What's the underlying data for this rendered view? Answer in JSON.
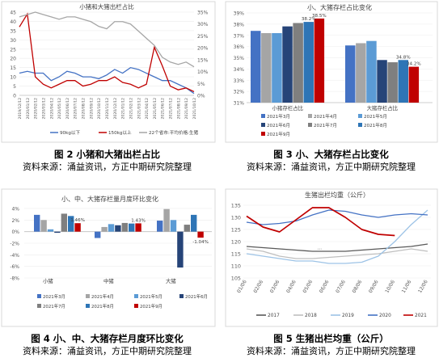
{
  "charts": {
    "c1": {
      "title": "小猪和大猪出栏占比",
      "left_ticks": [
        "0",
        "5",
        "10",
        "15",
        "20",
        "25",
        "30",
        "35",
        "40",
        "45"
      ],
      "right_ticks": [
        "0%",
        "5%",
        "10%",
        "15%",
        "20%",
        "25%",
        "30%",
        "35%"
      ],
      "x_labels": [
        "2019/12/12",
        "2020/01/12",
        "2020/02/12",
        "2020/03/12",
        "2020/04/12",
        "2020/05/12",
        "2020/06/12",
        "2020/07/12",
        "2020/08/12",
        "2020/09/12",
        "2020/10/12",
        "2020/11/12",
        "2020/12/12",
        "2021/01/12",
        "2021/02/12",
        "2021/03/12",
        "2021/04/12",
        "2021/05/12",
        "2021/06/12",
        "2021/07/12",
        "2021/08/12",
        "2021/09/12",
        "2021/10/12"
      ],
      "legend": [
        "90kg以下",
        "150kg以上",
        "22个省市:平均价格:生猪"
      ]
    },
    "c2": {
      "title": "小、大猪存栏占比变化",
      "y_ticks": [
        "31%",
        "32%",
        "33%",
        "34%",
        "35%",
        "36%",
        "37%",
        "38%",
        "39%"
      ],
      "groups": [
        "小猪存栏占比",
        "大猪存栏占比"
      ],
      "labels_g1": [
        "38.2%",
        "38.5%"
      ],
      "labels_g2": [
        "34.8%",
        "34.2%"
      ],
      "legend": [
        "2021年3月",
        "2021年4月",
        "2021年5月",
        "2021年6月",
        "2021年7月",
        "2021年8月",
        "2021年9月"
      ]
    },
    "c4": {
      "title": "小、中、大猪存栏量月度环比变化",
      "y_ticks": [
        "4%",
        "2%",
        "0%",
        "-2%",
        "-4%",
        "-6%",
        "-8%"
      ],
      "groups": [
        "小猪",
        "中猪",
        "大猪"
      ],
      "labels": [
        "1.46%",
        "1.43%",
        "-1.04%"
      ],
      "legend": [
        "2021年3月",
        "2021年4月",
        "2021年5月",
        "2021年6月",
        "2021年7月",
        "2021年8月",
        "2021年9月"
      ]
    },
    "c5": {
      "title": "生猪出栏均重（公斤）",
      "y_ticks": [
        "135",
        "130",
        "125",
        "120",
        "115",
        "110",
        "105"
      ],
      "x_labels": [
        "01/06",
        "02/06",
        "03/06",
        "04/06",
        "05/06",
        "06/06",
        "07/06",
        "08/06",
        "09/06",
        "10/06",
        "11/06",
        "12/06"
      ],
      "legend": [
        "2017",
        "2018",
        "2019",
        "2020",
        "2021"
      ],
      "note": "..."
    }
  },
  "captions": {
    "fig2_title": "图 2 小猪和大猪出栏占比",
    "fig2_source": "资料来源：涌益资讯，方正中期研究院整理",
    "fig3_title": "图 3 小、大猪存栏占比变化",
    "fig3_source": "资料来源：涌益资讯，方正中期研究院整理",
    "fig4_title": "图 4 小、中、大猪存栏月度环比变化",
    "fig4_source": "资料来源：涌益资讯，方正中期研究院整理",
    "fig5_title": "图 5 生猪出栏均重（公斤）",
    "fig5_source": "资料来源：涌益资讯，方正中期研究院整理"
  },
  "chart_data": [
    {
      "type": "line",
      "title": "小猪和大猪出栏占比",
      "x": [
        "2019/12/12",
        "2020/01/12",
        "2020/02/12",
        "2020/03/12",
        "2020/04/12",
        "2020/05/12",
        "2020/06/12",
        "2020/07/12",
        "2020/08/12",
        "2020/09/12",
        "2020/10/12",
        "2020/11/12",
        "2020/12/12",
        "2021/01/12",
        "2021/02/12",
        "2021/03/12",
        "2021/04/12",
        "2021/05/12",
        "2021/06/12",
        "2021/07/12",
        "2021/08/12",
        "2021/09/12",
        "2021/10/12"
      ],
      "ylim": [
        0,
        45
      ],
      "y2lim": [
        0,
        35
      ],
      "series": [
        {
          "name": "90kg以下",
          "axis": "left",
          "color": "#4472c4",
          "values": [
            12,
            13,
            12,
            12,
            8,
            10,
            13,
            12,
            10,
            10,
            9,
            11,
            14,
            12,
            15,
            14,
            12,
            10,
            8,
            8,
            6,
            4,
            1
          ]
        },
        {
          "name": "150kg以上",
          "axis": "left",
          "color": "#c00000",
          "values": [
            37,
            44,
            10,
            6,
            4,
            6,
            8,
            8,
            5,
            6,
            8,
            8,
            10,
            7,
            6,
            4,
            6,
            26,
            16,
            5,
            3,
            4,
            2
          ]
        },
        {
          "name": "22个省市:平均价格:生猪",
          "axis": "right",
          "color": "#a6a6a6",
          "values": [
            33,
            34,
            35,
            34,
            33,
            32,
            33,
            33,
            32,
            31,
            29,
            28,
            31,
            31,
            30,
            27,
            24,
            21,
            16,
            14,
            13,
            14,
            12
          ]
        }
      ]
    },
    {
      "type": "bar",
      "title": "小、大猪存栏占比变化",
      "categories": [
        "小猪存栏占比",
        "大猪存栏占比"
      ],
      "ylim": [
        31,
        39
      ],
      "series": [
        {
          "name": "2021年3月",
          "color": "#4472c4",
          "values": [
            37.4,
            36.1
          ]
        },
        {
          "name": "2021年4月",
          "color": "#a5a5a5",
          "values": [
            37.2,
            36.3
          ]
        },
        {
          "name": "2021年5月",
          "color": "#5b9bd5",
          "values": [
            37.2,
            36.5
          ]
        },
        {
          "name": "2021年6月",
          "color": "#264478",
          "values": [
            37.8,
            34.8
          ]
        },
        {
          "name": "2021年7月",
          "color": "#7f7f7f",
          "values": [
            38.1,
            34.6
          ]
        },
        {
          "name": "2021年8月",
          "color": "#2e75b6",
          "values": [
            38.2,
            34.8
          ]
        },
        {
          "name": "2021年9月",
          "color": "#c00000",
          "values": [
            38.5,
            34.2
          ]
        }
      ]
    },
    {
      "type": "bar",
      "title": "小、中、大猪存栏量月度环比变化",
      "categories": [
        "小猪",
        "中猪",
        "大猪"
      ],
      "ylim": [
        -8,
        4
      ],
      "series": [
        {
          "name": "2021年3月",
          "color": "#4472c4",
          "values": [
            2.9,
            -1.1,
            1.9
          ]
        },
        {
          "name": "2021年4月",
          "color": "#a5a5a5",
          "values": [
            2.0,
            0.8,
            3.9
          ]
        },
        {
          "name": "2021年5月",
          "color": "#5b9bd5",
          "values": [
            0.4,
            1.3,
            2.0
          ]
        },
        {
          "name": "2021年6月",
          "color": "#264478",
          "values": [
            -0.2,
            1.1,
            -6.2
          ]
        },
        {
          "name": "2021年7月",
          "color": "#7f7f7f",
          "values": [
            3.1,
            1.5,
            1.2
          ]
        },
        {
          "name": "2021年8月",
          "color": "#2e75b6",
          "values": [
            2.7,
            1.4,
            2.9
          ]
        },
        {
          "name": "2021年9月",
          "color": "#c00000",
          "values": [
            1.46,
            1.43,
            -1.04
          ]
        }
      ]
    },
    {
      "type": "line",
      "title": "生猪出栏均重（公斤）",
      "x": [
        "01/06",
        "02/06",
        "03/06",
        "04/06",
        "05/06",
        "06/06",
        "07/06",
        "08/06",
        "09/06",
        "10/06",
        "11/06",
        "12/06"
      ],
      "ylim": [
        105,
        135
      ],
      "series": [
        {
          "name": "2017",
          "color": "#595959",
          "values": [
            118,
            117.5,
            117,
            116.5,
            116,
            116,
            116,
            116.5,
            117,
            117.5,
            118,
            119
          ]
        },
        {
          "name": "2018",
          "color": "#bfbfbf",
          "values": [
            117,
            116,
            114,
            113,
            113,
            113.5,
            114,
            114.5,
            115,
            116,
            117,
            116
          ]
        },
        {
          "name": "2019",
          "color": "#9dc3e6",
          "values": [
            115,
            114,
            113,
            112,
            112,
            111,
            111,
            111.5,
            114,
            120,
            127,
            133
          ]
        },
        {
          "name": "2020",
          "color": "#4472c4",
          "values": [
            128,
            127,
            127.5,
            128.5,
            131,
            133,
            132.5,
            131,
            130,
            131,
            131.5,
            131
          ]
        },
        {
          "name": "2021",
          "color": "#c00000",
          "values": [
            130.5,
            126,
            124,
            129,
            134,
            134,
            130,
            125,
            123,
            122.5,
            null,
            null
          ]
        }
      ]
    }
  ]
}
